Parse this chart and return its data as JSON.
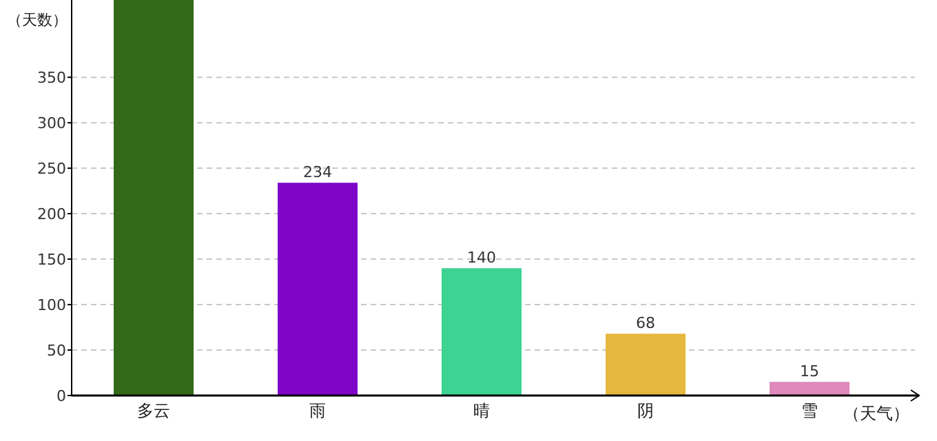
{
  "chart_data": {
    "type": "bar",
    "xlabel": "（天气）",
    "ylabel": "（天数）",
    "categories": [
      "多云",
      "雨",
      "晴",
      "阴",
      "雪"
    ],
    "values": [
      435,
      234,
      140,
      68,
      15
    ],
    "colors": [
      "#336a1a",
      "#7f06c9",
      "#3dd392",
      "#e6b83e",
      "#df89bd"
    ],
    "value_labels": [
      null,
      "234",
      "140",
      "68",
      "15"
    ],
    "ylim": [
      0,
      435
    ],
    "yticks": [
      0,
      50,
      100,
      150,
      200,
      250,
      300,
      350
    ],
    "grid": "y"
  }
}
